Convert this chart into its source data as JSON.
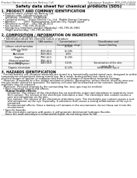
{
  "bg_color": "#ffffff",
  "header_left": "Product Name: Lithium Ion Battery Cell",
  "header_right_line1": "Substance Number: SDS-049-00016",
  "header_right_line2": "Established / Revision: Dec.7,2016",
  "title": "Safety data sheet for chemical products (SDS)",
  "section1_title": "1. PRODUCT AND COMPANY IDENTIFICATION",
  "section1_lines": [
    "  • Product name: Lithium Ion Battery Cell",
    "  • Product code: Cylindrical-type cell",
    "     UR18650J, UR18650L, UR18650A",
    "  • Company name:    Sanyo Electric Co., Ltd.  Mobile Energy Company",
    "  • Address:          2001  Kamimunakan, Sumoto City, Hyogo, Japan",
    "  • Telephone number:   +81-799-26-4111",
    "  • Fax number:   +81-799-26-4129",
    "  • Emergency telephone number (Weekday) +81-799-26-3962",
    "     (Night and holiday) +81-799-26-4101"
  ],
  "section2_title": "2. COMPOSITION / INFORMATION ON INGREDIENTS",
  "section2_intro": "  • Substance or preparation: Preparation",
  "section2_sub": "   • Information about the chemical nature of product:",
  "table_col_headers": [
    "Common chemical name",
    "CAS number",
    "Concentration /\nConcentration range",
    "Classification and\nhazard labeling"
  ],
  "table_rows": [
    [
      "Lithium cobalt tantalate\n(LiMn-Co-TiO2)",
      "-",
      "30-60%",
      "-"
    ],
    [
      "Iron",
      "7439-89-6",
      "10-20%",
      "-"
    ],
    [
      "Aluminum",
      "7429-90-5",
      "2-5%",
      "-"
    ],
    [
      "Graphite\n(Natural graphite)\n(Artificial graphite)",
      "7782-42-5\n7782-42-5",
      "10-20%",
      "-"
    ],
    [
      "Copper",
      "7440-50-8",
      "5-10%",
      "Sensitization of the skin\ngroup No.2"
    ],
    [
      "Organic electrolyte",
      "-",
      "10-20%",
      "Inflammable liquid"
    ]
  ],
  "section3_title": "3. HAZARDS IDENTIFICATION",
  "section3_para1": "   For this battery cell, chemical materials are stored in a hermetically-sealed metal case, designed to withstand",
  "section3_para2": "temperatures encountered during normal use. As a result, during normal use, there is no",
  "section3_para3": "physical danger of ignition or explosion and there is no danger of hazardous materials leakage.",
  "section3_para4": "   However, if exposed to a fire, added mechanical shocks, decompress, enters electric shock by miss-use,",
  "section3_para5": "the gas inside cannot be operated. The battery cell case will be breached at the extreme, hazardous",
  "section3_para6": "materials may be released.",
  "section3_para7": "   Moreover, if heated strongly by the surrounding fire, toxic gas may be emitted.",
  "section3_b1": "  • Most important hazard and effects:",
  "section3_b1a": "     Human health effects:",
  "section3_inhal": "        Inhalation: The release of the electrolyte has an anesthetic action and stimulates in respiratory tract.",
  "section3_skin1": "        Skin contact: The release of the electrolyte stimulates a skin. The electrolyte skin contact causes a",
  "section3_skin2": "        sore and stimulation on the skin.",
  "section3_eye1": "        Eye contact: The release of the electrolyte stimulates eyes. The electrolyte eye contact causes a sore",
  "section3_eye2": "        and stimulation on the eye. Especially, a substance that causes a strong inflammation of the eye is",
  "section3_eye3": "        contained.",
  "section3_env1": "        Environmental effects: Since a battery cell remains in the environment, do not throw out it into the",
  "section3_env2": "        environment.",
  "section3_b2": "  • Specific hazards:",
  "section3_sp1": "     If the electrolyte contacts with water, it will generate detrimental hydrogen fluoride.",
  "section3_sp2": "     Since the used electrolyte is inflammable liquid, do not bring close to fire.",
  "footer_line": ""
}
